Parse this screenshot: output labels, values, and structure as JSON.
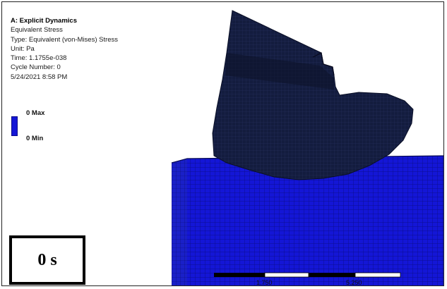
{
  "result_info": {
    "title": "A: Explicit Dynamics",
    "result_name": "Equivalent Stress",
    "type": "Type: Equivalent (von-Mises) Stress",
    "unit": "Unit: Pa",
    "time": "Time: 1.1755e-038",
    "cycle": "Cycle Number: 0",
    "timestamp": "5/24/2021 8:58 PM"
  },
  "legend": {
    "max_label": "0 Max",
    "min_label": "0 Min",
    "color": "#1416d6"
  },
  "time_overlay": {
    "label": "0 s"
  },
  "scale_bar": {
    "label_1": "1.750",
    "label_2": "5.250"
  },
  "colors": {
    "mesh_blue": "#1416d6",
    "projectile_dark": "#101a3a",
    "background": "#ffffff"
  }
}
